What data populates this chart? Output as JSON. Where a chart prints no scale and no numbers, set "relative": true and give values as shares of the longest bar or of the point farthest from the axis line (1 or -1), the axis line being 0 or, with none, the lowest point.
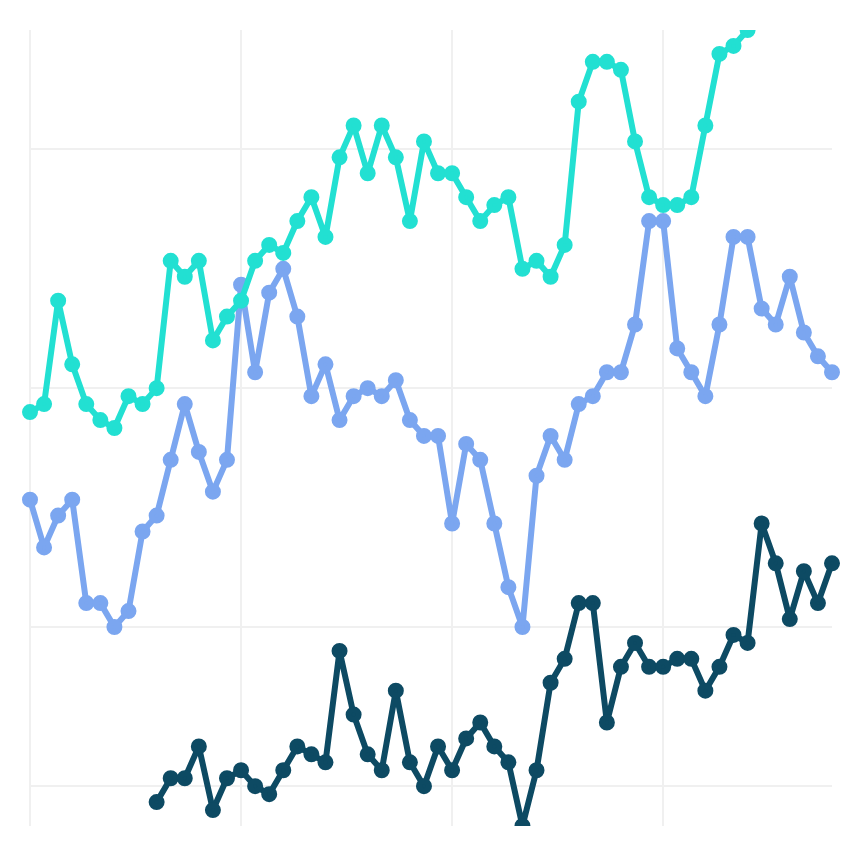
{
  "chart_data": {
    "type": "line",
    "relative": true,
    "grid": true,
    "legend": false,
    "marker": "circle",
    "line_style": "solid",
    "categories": [
      null,
      null,
      null,
      null,
      null,
      null,
      null,
      null,
      null,
      null,
      null,
      null,
      null,
      null,
      null,
      null,
      null,
      null,
      null,
      null,
      null,
      null,
      null,
      null,
      null,
      null,
      null,
      null,
      null,
      null,
      null,
      null,
      null,
      null,
      null,
      null,
      null,
      null,
      null,
      null,
      null,
      null,
      null,
      null,
      null,
      null,
      null,
      null,
      null,
      null,
      null,
      null,
      null,
      null,
      null,
      null,
      null,
      null
    ],
    "series": [
      {
        "color": "#22e0d2",
        "values": [
          0.52,
          0.53,
          0.66,
          0.58,
          0.53,
          0.51,
          0.5,
          0.54,
          0.53,
          0.55,
          0.71,
          0.69,
          0.71,
          0.61,
          0.64,
          0.66,
          0.71,
          0.73,
          0.72,
          0.76,
          0.79,
          0.74,
          0.84,
          0.88,
          0.82,
          0.88,
          0.84,
          0.76,
          0.86,
          0.82,
          0.82,
          0.79,
          0.76,
          0.78,
          0.79,
          0.7,
          0.71,
          0.69,
          0.73,
          0.91,
          0.96,
          0.96,
          0.95,
          0.86,
          0.79,
          0.78,
          0.78,
          0.79,
          0.88,
          0.97,
          0.98,
          1,
          null,
          null,
          null,
          null,
          null,
          null
        ]
      },
      {
        "color": "#7ba6f0",
        "values": [
          0.41,
          0.35,
          0.39,
          0.41,
          0.28,
          0.28,
          0.25,
          0.27,
          0.37,
          0.39,
          0.46,
          0.53,
          0.47,
          0.42,
          0.46,
          0.68,
          0.57,
          0.67,
          0.7,
          0.64,
          0.54,
          0.58,
          0.51,
          0.54,
          0.55,
          0.54,
          0.56,
          0.51,
          0.49,
          0.49,
          0.38,
          0.48,
          0.46,
          0.38,
          0.3,
          0.25,
          0.44,
          0.49,
          0.46,
          0.53,
          0.54,
          0.57,
          0.57,
          0.63,
          0.76,
          0.76,
          0.6,
          0.57,
          0.54,
          0.63,
          0.74,
          0.74,
          0.65,
          0.63,
          0.69,
          0.62,
          0.59,
          0.57
        ]
      },
      {
        "color": "#0d4a63",
        "values": [
          null,
          null,
          null,
          null,
          null,
          null,
          null,
          null,
          null,
          0.03,
          0.06,
          0.06,
          0.1,
          0.02,
          0.06,
          0.07,
          0.05,
          0.04,
          0.07,
          0.1,
          0.09,
          0.08,
          0.22,
          0.14,
          0.09,
          0.07,
          0.17,
          0.08,
          0.05,
          0.1,
          0.07,
          0.11,
          0.13,
          0.1,
          0.08,
          0,
          0.07,
          0.18,
          0.21,
          0.28,
          0.28,
          0.13,
          0.2,
          0.23,
          0.2,
          0.2,
          0.21,
          0.21,
          0.17,
          0.2,
          0.24,
          0.23,
          0.38,
          0.33,
          0.26,
          0.32,
          0.28,
          0.33
        ]
      }
    ]
  }
}
